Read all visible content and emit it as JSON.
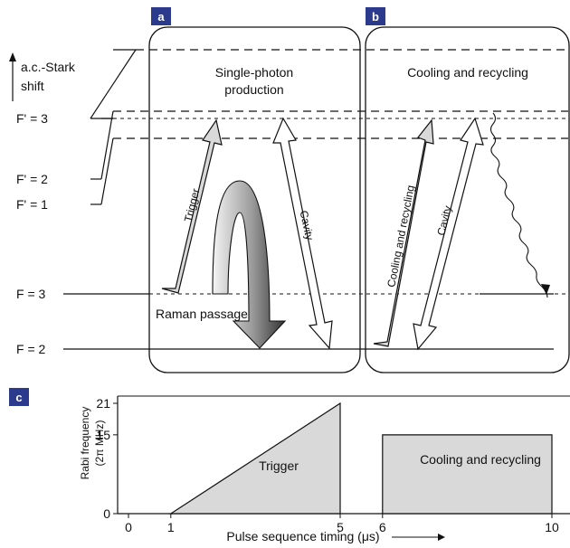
{
  "panels": {
    "a": {
      "letter": "a",
      "title_line1": "Single-photon",
      "title_line2": "production",
      "arrow_trigger": "Trigger",
      "arrow_cavity": "Cavity",
      "raman": "Raman passage"
    },
    "b": {
      "letter": "b",
      "title": "Cooling and recycling",
      "arrow_cooling": "Cooling and recycling",
      "arrow_cavity": "Cavity"
    },
    "c": {
      "letter": "c"
    }
  },
  "levels": {
    "stark_line1": "a.c.-Stark",
    "stark_line2": "shift",
    "f3_prime": "F' = 3",
    "f2_prime": "F' = 2",
    "f1_prime": "F' = 1",
    "f3": "F = 3",
    "f2": "F = 2"
  },
  "colors": {
    "panel_label_bg": "#2b3a8c",
    "arrow_fill": "#d9d9d9",
    "pulse_fill": "#d9d9d9"
  },
  "chart_data": {
    "type": "area",
    "xlabel": "Pulse sequence timing (μs)",
    "ylabel_line1": "Rabi frequency",
    "ylabel_line2": "(2π MHz)",
    "xlim": [
      0,
      10
    ],
    "ylim": [
      0,
      21
    ],
    "x_ticks": [
      0,
      1,
      5,
      6,
      10
    ],
    "y_ticks": [
      0,
      15,
      21
    ],
    "series": [
      {
        "name": "Trigger",
        "x": [
          1,
          5,
          5
        ],
        "y": [
          0,
          21,
          0
        ]
      },
      {
        "name": "Cooling and recycling",
        "x": [
          6,
          6,
          10,
          10
        ],
        "y": [
          0,
          15,
          15,
          0
        ]
      }
    ]
  }
}
